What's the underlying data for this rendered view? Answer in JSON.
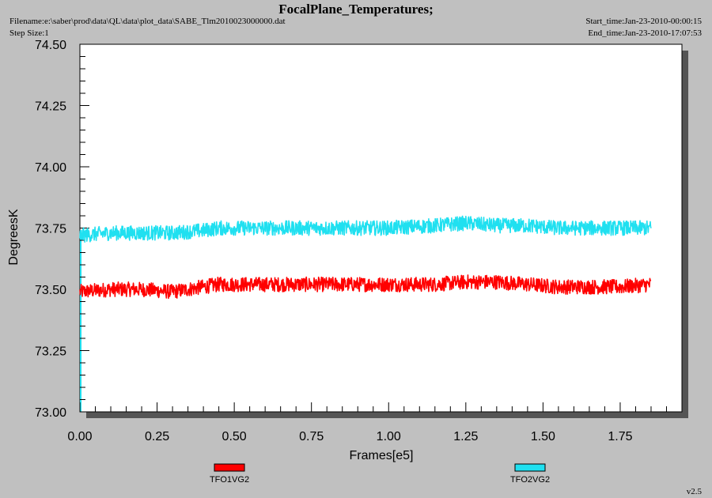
{
  "header": {
    "title": "FocalPlane_Temperatures;",
    "filename": "Filename:e:\\saber\\prod\\data\\QL\\data\\plot_data\\SABE_Tlm2010023000000.dat",
    "step_size": "Step Size:1",
    "start_time": "Start_time:Jan-23-2010-00:00:15",
    "end_time": "End_time:Jan-23-2010-17:07:53"
  },
  "footer": {
    "version": "v2.5"
  },
  "colors": {
    "background": "#c0c0c0",
    "series1": "#ff0000",
    "series2": "#20e0f0"
  },
  "chart_data": {
    "type": "line",
    "title": "FocalPlane_Temperatures;",
    "xlabel": "Frames[e5]",
    "ylabel": "DegreesK",
    "xlim": [
      0,
      1.95
    ],
    "ylim": [
      73.0,
      74.5
    ],
    "xticks": [
      "0.00",
      "0.25",
      "0.50",
      "0.75",
      "1.00",
      "1.25",
      "1.50",
      "1.75"
    ],
    "yticks": [
      "73.00",
      "73.25",
      "73.50",
      "73.75",
      "74.00",
      "74.25",
      "74.50"
    ],
    "legend_position": "bottom",
    "series": [
      {
        "name": "TFO1VG2",
        "color": "#ff0000",
        "noise_band": 0.03,
        "x": [
          0.0,
          0.1,
          0.2,
          0.3,
          0.4,
          0.45,
          0.6,
          0.75,
          0.9,
          1.0,
          1.15,
          1.25,
          1.35,
          1.45,
          1.55,
          1.65,
          1.75,
          1.85
        ],
        "y": [
          73.49,
          73.5,
          73.5,
          73.49,
          73.51,
          73.52,
          73.52,
          73.52,
          73.52,
          73.52,
          73.52,
          73.53,
          73.53,
          73.52,
          73.51,
          73.51,
          73.51,
          73.52
        ]
      },
      {
        "name": "TFO2VG2",
        "color": "#20e0f0",
        "noise_band": 0.03,
        "x": [
          0.0,
          0.1,
          0.2,
          0.3,
          0.4,
          0.45,
          0.6,
          0.75,
          0.9,
          1.0,
          1.15,
          1.25,
          1.35,
          1.45,
          1.55,
          1.65,
          1.75,
          1.85
        ],
        "y": [
          73.72,
          73.73,
          73.73,
          73.73,
          73.74,
          73.75,
          73.75,
          73.75,
          73.75,
          73.75,
          73.76,
          73.77,
          73.76,
          73.76,
          73.75,
          73.75,
          73.75,
          73.75
        ]
      }
    ]
  }
}
